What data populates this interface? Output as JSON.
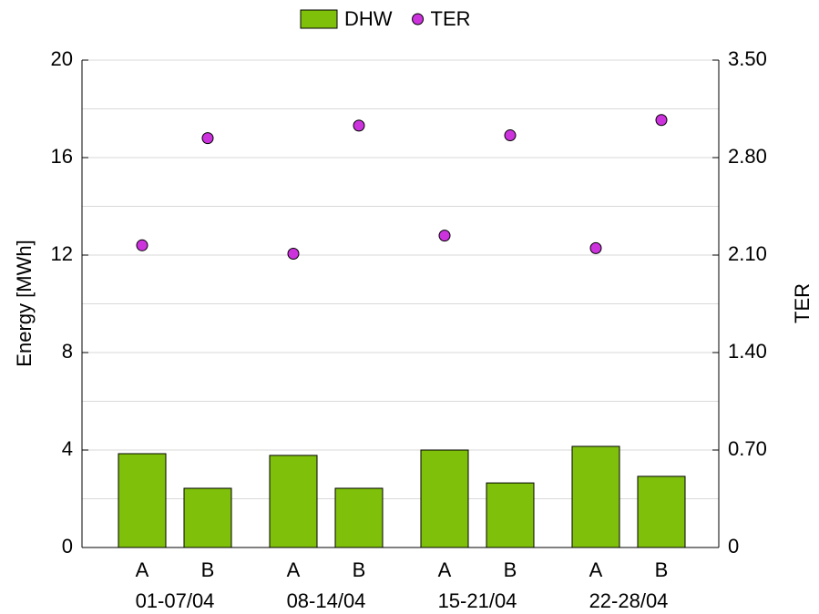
{
  "chart_data": {
    "type": "bar_scatter",
    "categories": [
      "A",
      "B",
      "A",
      "B",
      "A",
      "B",
      "A",
      "B"
    ],
    "groups": [
      "01-07/04",
      "08-14/04",
      "15-21/04",
      "22-28/04"
    ],
    "y_label": "Energy [MWh]",
    "y2_label": "TER",
    "ylim": [
      0,
      20
    ],
    "yticks": [
      0,
      4,
      8,
      12,
      16,
      20
    ],
    "y2lim": [
      0,
      3.5
    ],
    "y2ticks": [
      0,
      {
        "value": 0.7,
        "label": "0.70"
      },
      {
        "value": 1.4,
        "label": "1.40"
      },
      {
        "value": 2.1,
        "label": "2.10"
      },
      {
        "value": 2.8,
        "label": "2.80"
      },
      {
        "value": 3.5,
        "label": "3.50"
      }
    ],
    "grid": true,
    "series": [
      {
        "name": "DHW",
        "type": "bar",
        "color": "#7fc00a",
        "values": [
          3.85,
          2.43,
          3.78,
          2.43,
          4.0,
          2.65,
          4.15,
          2.92
        ]
      },
      {
        "name": "TER",
        "type": "scatter",
        "axis": "y2",
        "color": "#cc33dd",
        "values": [
          2.17,
          2.94,
          2.11,
          3.03,
          2.24,
          2.96,
          2.15,
          3.07
        ]
      }
    ]
  }
}
